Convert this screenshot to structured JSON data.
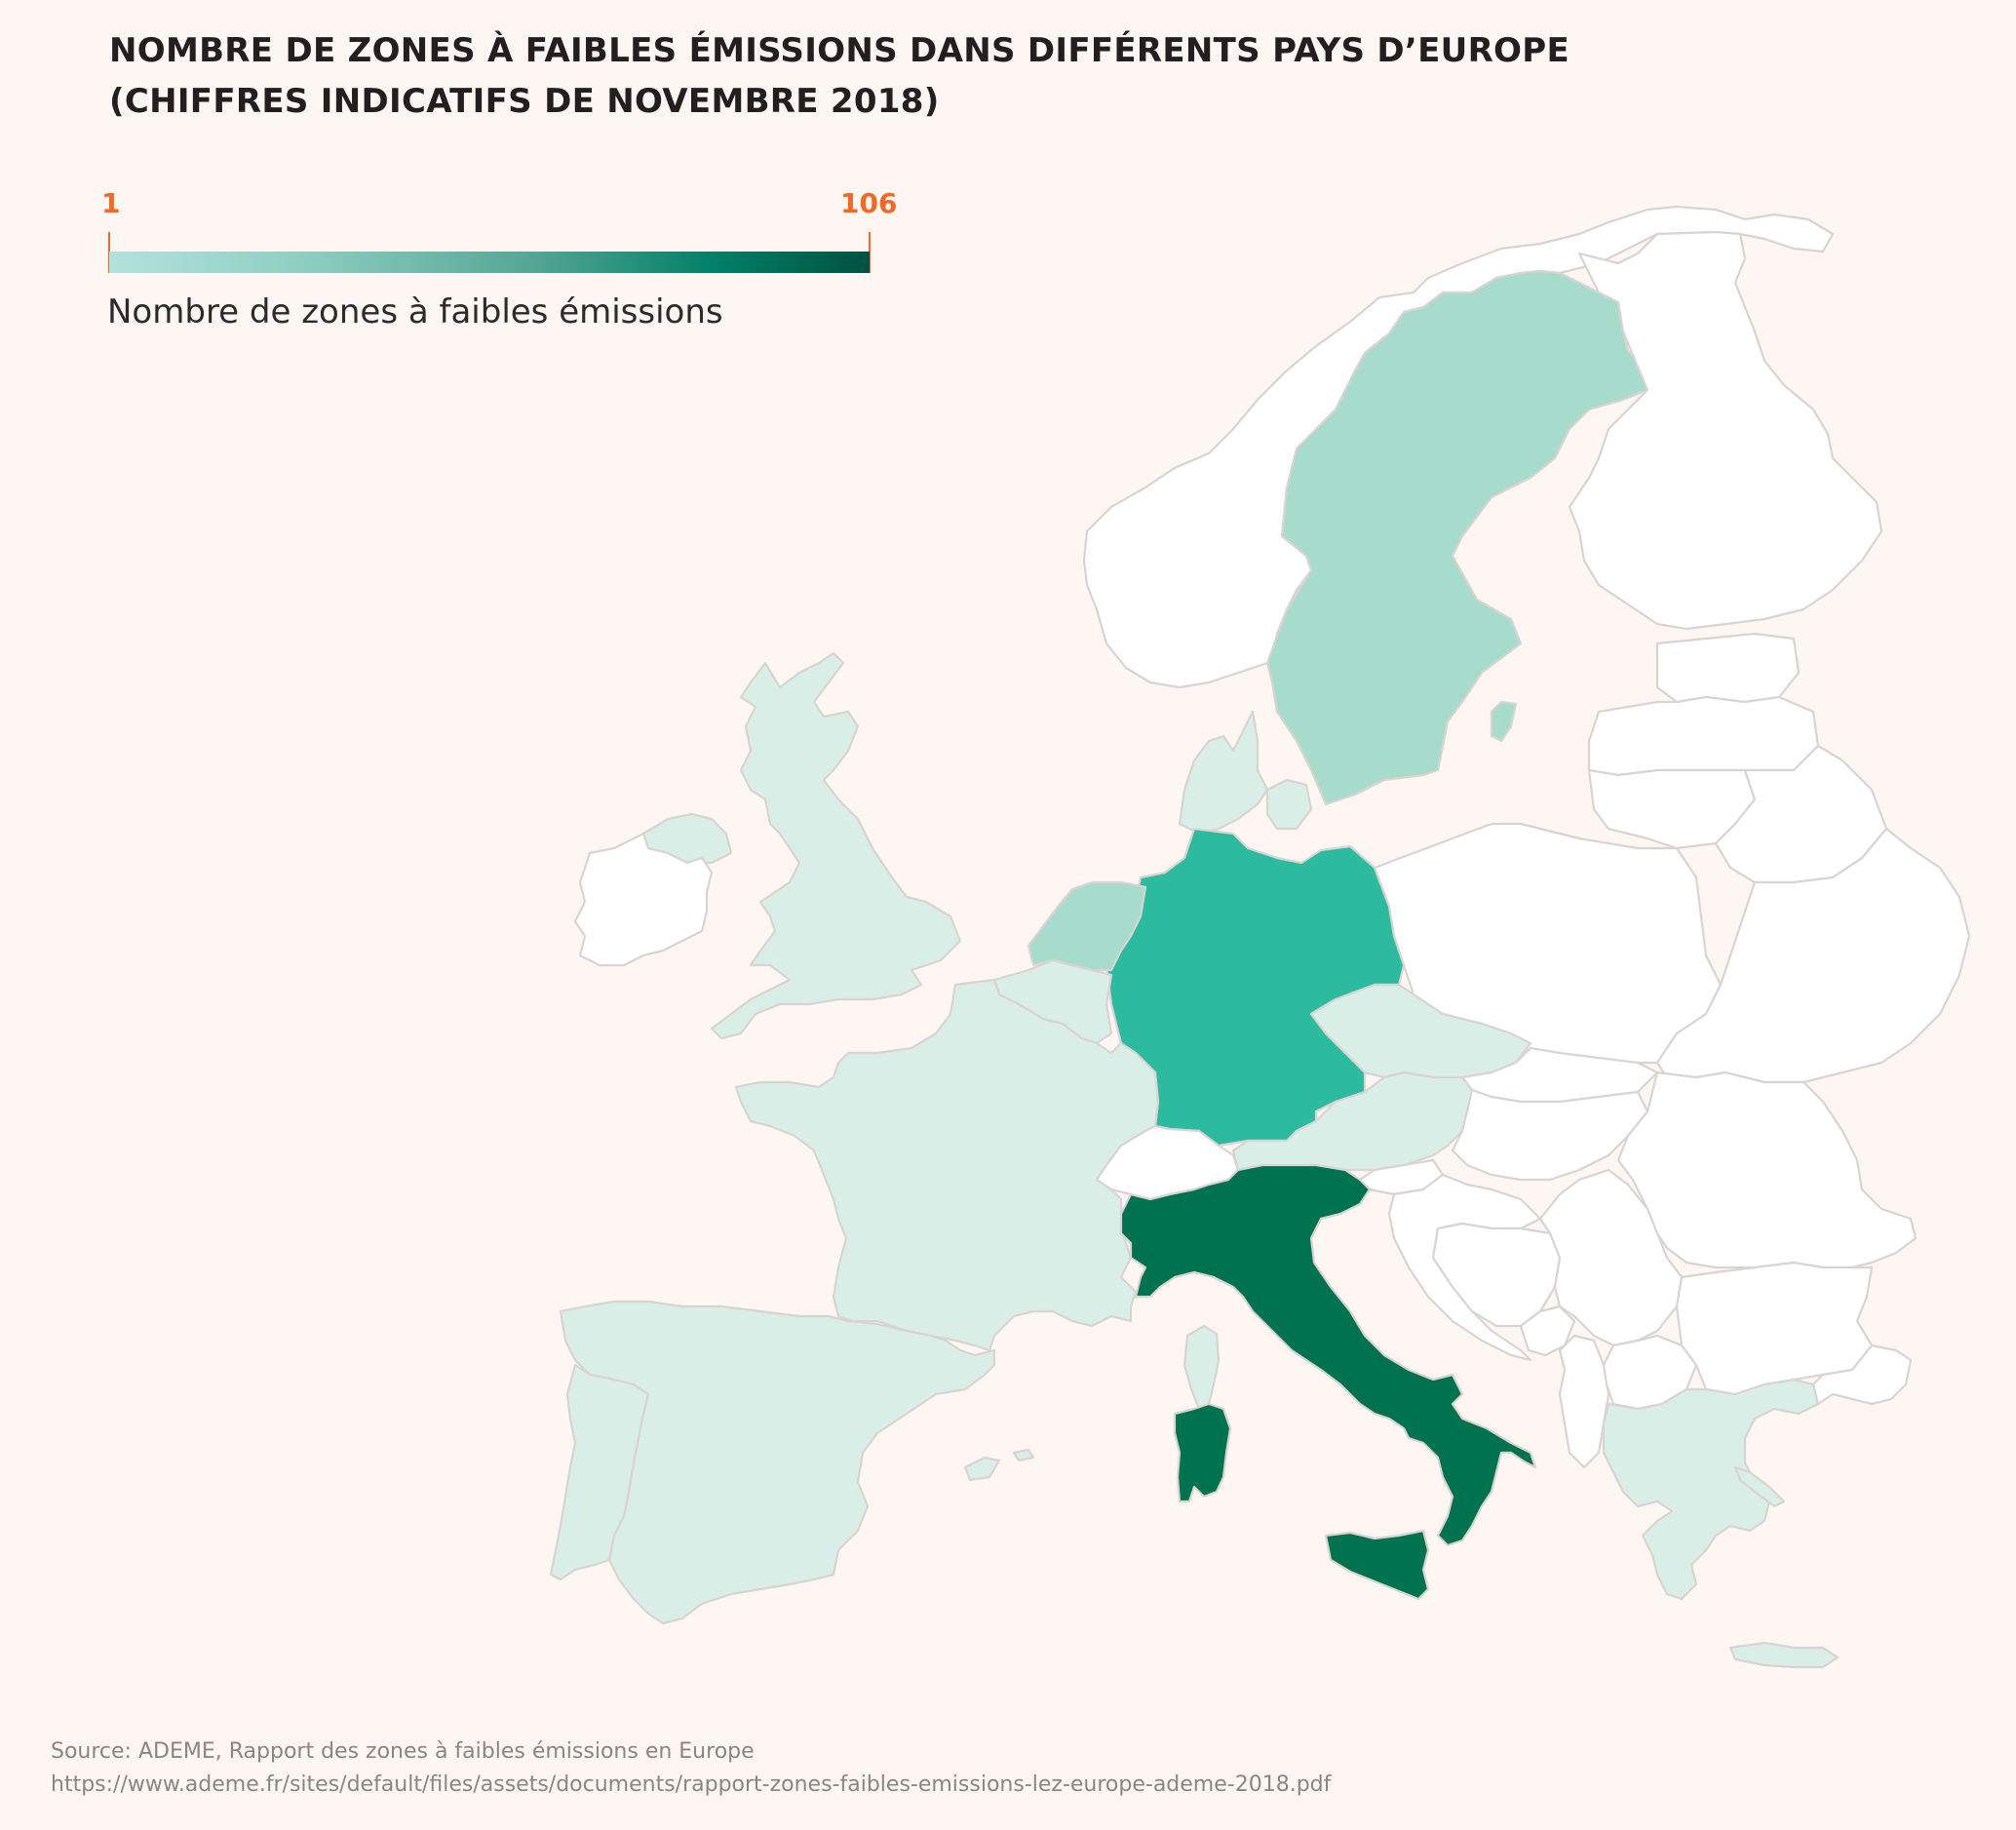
{
  "title_lines": [
    "NOMBRE DE ZONES À FAIBLES ÉMISSIONS DANS DIFFÉRENTS PAYS D’EUROPE",
    "(CHIFFRES INDICATIFS DE NOVEMBRE 2018)"
  ],
  "legend": {
    "min": "1",
    "max": "106",
    "label": "Nombre de zones à faibles émissions",
    "color_low": "#b3e2dc",
    "color_high": "#00523f"
  },
  "colors": {
    "background": "#fdf6f2",
    "no_data": "#ffffff",
    "level_lowest": "#daeee8",
    "level_low": "#a7dbcc",
    "level_mid": "#2dbba0",
    "level_high": "#00724f",
    "accent": "#f06a25"
  },
  "countries": [
    {
      "id": "italy",
      "fill_level": "level_high"
    },
    {
      "id": "germany",
      "fill_level": "level_mid"
    },
    {
      "id": "sweden",
      "fill_level": "level_low"
    },
    {
      "id": "netherlands",
      "fill_level": "level_low"
    },
    {
      "id": "united-kingdom",
      "fill_level": "level_lowest"
    },
    {
      "id": "france",
      "fill_level": "level_lowest"
    },
    {
      "id": "spain",
      "fill_level": "level_lowest"
    },
    {
      "id": "portugal",
      "fill_level": "level_lowest"
    },
    {
      "id": "belgium",
      "fill_level": "level_lowest"
    },
    {
      "id": "denmark",
      "fill_level": "level_lowest"
    },
    {
      "id": "czechia",
      "fill_level": "level_lowest"
    },
    {
      "id": "austria",
      "fill_level": "level_lowest"
    },
    {
      "id": "greece",
      "fill_level": "level_lowest"
    },
    {
      "id": "northern-ireland",
      "fill_level": "level_lowest"
    },
    {
      "id": "ireland",
      "fill_level": "no_data"
    },
    {
      "id": "norway",
      "fill_level": "no_data"
    },
    {
      "id": "finland",
      "fill_level": "no_data"
    },
    {
      "id": "switzerland",
      "fill_level": "no_data"
    },
    {
      "id": "poland",
      "fill_level": "no_data"
    }
  ],
  "source_lines": [
    "Source: ADEME, Rapport des zones à faibles émissions en Europe",
    "https://www.ademe.fr/sites/default/files/assets/documents/rapport-zones-faibles-emissions-lez-europe-ademe-2018.pdf"
  ]
}
